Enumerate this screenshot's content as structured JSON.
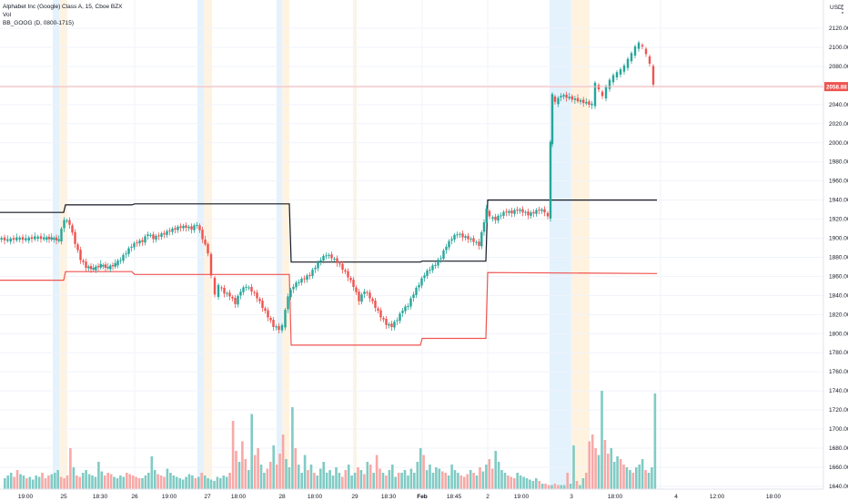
{
  "legend": {
    "symbol": "Alphabet Inc (Google) Class A, 15, Cboe BZX",
    "volume": "Vol",
    "indicator": "BB_GOOG (D, 0800-1715)"
  },
  "currency": "USD",
  "menu_icon": "dots-icon",
  "colors": {
    "up": "#26a69a",
    "down": "#ef5350",
    "vol_up": "#80cbc4",
    "vol_down": "#f7a9a7",
    "band_upper": "#131722",
    "band_lower": "#ef5350",
    "price_line": "#f7b6b5",
    "session_blue": "#e3f2fd",
    "session_orange": "#fff3e0"
  },
  "chart_data": {
    "type": "candlestick",
    "last_price": 2058.88,
    "last_price_label": "2058.88",
    "y_range": [
      1635,
      2150
    ],
    "y_ticks": [
      "2120.00",
      "2100.00",
      "2080.00",
      "2060.00",
      "2040.00",
      "2020.00",
      "2000.00",
      "1980.00",
      "1960.00",
      "1940.00",
      "1920.00",
      "1900.00",
      "1880.00",
      "1860.00",
      "1840.00",
      "1820.00",
      "1800.00",
      "1780.00",
      "1760.00",
      "1740.00",
      "1720.00",
      "1700.00",
      "1680.00",
      "1660.00",
      "1640.00"
    ],
    "y_tick_values": [
      2120,
      2100,
      2080,
      2060,
      2040,
      2020,
      2000,
      1980,
      1960,
      1940,
      1920,
      1900,
      1880,
      1860,
      1840,
      1820,
      1800,
      1780,
      1760,
      1740,
      1720,
      1700,
      1680,
      1660,
      1640
    ],
    "x_labels": [
      "19:00",
      "25",
      "18:30",
      "26",
      "19:00",
      "27",
      "18:00",
      "28",
      "18:00",
      "29",
      "18:30",
      "Feb",
      "18:45",
      "2",
      "19:00",
      "3",
      "18:00",
      "4",
      "12:00",
      "18:00"
    ],
    "x_label_bold": [
      "Feb"
    ],
    "price_path": [
      [
        0,
        1900
      ],
      [
        10,
        1898
      ],
      [
        20,
        1900
      ],
      [
        30,
        1899
      ],
      [
        40,
        1901
      ],
      [
        50,
        1900
      ],
      [
        58,
        1900
      ],
      [
        66,
        1898
      ],
      [
        72,
        1920
      ],
      [
        78,
        1915
      ],
      [
        84,
        1895
      ],
      [
        90,
        1878
      ],
      [
        96,
        1870
      ],
      [
        104,
        1868
      ],
      [
        112,
        1872
      ],
      [
        120,
        1869
      ],
      [
        128,
        1873
      ],
      [
        134,
        1878
      ],
      [
        140,
        1885
      ],
      [
        146,
        1892
      ],
      [
        152,
        1896
      ],
      [
        158,
        1897
      ],
      [
        164,
        1905
      ],
      [
        170,
        1900
      ],
      [
        176,
        1903
      ],
      [
        182,
        1905
      ],
      [
        188,
        1908
      ],
      [
        194,
        1910
      ],
      [
        200,
        1912
      ],
      [
        206,
        1912
      ],
      [
        212,
        1910
      ],
      [
        218,
        1915
      ],
      [
        230,
        1885
      ],
      [
        234,
        1860
      ],
      [
        238,
        1840
      ],
      [
        242,
        1850
      ],
      [
        248,
        1843
      ],
      [
        254,
        1840
      ],
      [
        260,
        1832
      ],
      [
        266,
        1845
      ],
      [
        272,
        1850
      ],
      [
        278,
        1845
      ],
      [
        284,
        1838
      ],
      [
        290,
        1828
      ],
      [
        296,
        1818
      ],
      [
        302,
        1808
      ],
      [
        308,
        1805
      ],
      [
        312,
        1808
      ],
      [
        318,
        1840
      ],
      [
        324,
        1850
      ],
      [
        330,
        1855
      ],
      [
        336,
        1858
      ],
      [
        342,
        1862
      ],
      [
        348,
        1870
      ],
      [
        354,
        1878
      ],
      [
        360,
        1883
      ],
      [
        366,
        1880
      ],
      [
        372,
        1875
      ],
      [
        378,
        1868
      ],
      [
        384,
        1860
      ],
      [
        390,
        1850
      ],
      [
        396,
        1835
      ],
      [
        402,
        1845
      ],
      [
        408,
        1838
      ],
      [
        414,
        1828
      ],
      [
        420,
        1818
      ],
      [
        426,
        1810
      ],
      [
        432,
        1808
      ],
      [
        438,
        1815
      ],
      [
        444,
        1825
      ],
      [
        450,
        1830
      ],
      [
        456,
        1842
      ],
      [
        462,
        1852
      ],
      [
        468,
        1862
      ],
      [
        474,
        1868
      ],
      [
        480,
        1873
      ],
      [
        486,
        1880
      ],
      [
        492,
        1892
      ],
      [
        498,
        1900
      ],
      [
        504,
        1905
      ],
      [
        510,
        1902
      ],
      [
        516,
        1900
      ],
      [
        522,
        1897
      ],
      [
        528,
        1893
      ],
      [
        536,
        1930
      ],
      [
        540,
        1922
      ],
      [
        546,
        1920
      ],
      [
        552,
        1925
      ],
      [
        558,
        1928
      ],
      [
        564,
        1927
      ],
      [
        570,
        1930
      ],
      [
        576,
        1928
      ],
      [
        582,
        1925
      ],
      [
        588,
        1927
      ],
      [
        594,
        1930
      ],
      [
        600,
        1928
      ],
      [
        604,
        1922
      ],
      [
        606,
        2000
      ],
      [
        608,
        2050
      ],
      [
        612,
        2042
      ],
      [
        618,
        2050
      ],
      [
        652,
        2040
      ],
      [
        656,
        2062
      ],
      [
        660,
        2055
      ],
      [
        664,
        2048
      ],
      [
        668,
        2058
      ],
      [
        672,
        2065
      ],
      [
        676,
        2070
      ],
      [
        680,
        2073
      ],
      [
        684,
        2076
      ],
      [
        688,
        2080
      ],
      [
        692,
        2087
      ],
      [
        696,
        2093
      ],
      [
        700,
        2100
      ],
      [
        704,
        2104
      ],
      [
        708,
        2100
      ],
      [
        712,
        2092
      ],
      [
        716,
        2082
      ],
      [
        720,
        2060
      ]
    ],
    "bands": {
      "upper": [
        [
          0,
          1927
        ],
        [
          70,
          1927
        ],
        [
          72,
          1935
        ],
        [
          145,
          1935
        ],
        [
          148,
          1936
        ],
        [
          318,
          1936
        ],
        [
          320,
          1875
        ],
        [
          462,
          1875
        ],
        [
          464,
          1876
        ],
        [
          534,
          1876
        ],
        [
          536,
          1940
        ],
        [
          722,
          1940
        ]
      ],
      "lower": [
        [
          0,
          1856
        ],
        [
          70,
          1856
        ],
        [
          72,
          1865
        ],
        [
          145,
          1865
        ],
        [
          148,
          1862
        ],
        [
          318,
          1862
        ],
        [
          320,
          1788
        ],
        [
          462,
          1788
        ],
        [
          464,
          1795
        ],
        [
          534,
          1795
        ],
        [
          536,
          1864
        ],
        [
          722,
          1863
        ]
      ]
    },
    "volume_pct_max": [
      8,
      10,
      12,
      9,
      14,
      11,
      10,
      8,
      9,
      7,
      10,
      9,
      12,
      8,
      10,
      11,
      12,
      14,
      9,
      8,
      10,
      30,
      16,
      10,
      9,
      12,
      14,
      11,
      10,
      9,
      20,
      13,
      10,
      12,
      11,
      9,
      8,
      10,
      9,
      12,
      11,
      10,
      9,
      8,
      8,
      10,
      12,
      24,
      14,
      11,
      10,
      9,
      15,
      12,
      10,
      9,
      8,
      7,
      9,
      11,
      10,
      8,
      9,
      12,
      10,
      8,
      7,
      6,
      9,
      8,
      10,
      9,
      12,
      50,
      28,
      20,
      35,
      22,
      14,
      55,
      25,
      30,
      18,
      12,
      15,
      20,
      32,
      18,
      26,
      40,
      22,
      16,
      60,
      30,
      18,
      12,
      25,
      14,
      18,
      12,
      10,
      15,
      20,
      12,
      14,
      10,
      16,
      12,
      9,
      14,
      18,
      10,
      12,
      16,
      14,
      11,
      20,
      18,
      12,
      25,
      15,
      12,
      10,
      14,
      18,
      9,
      12,
      12,
      14,
      10,
      15,
      12,
      20,
      30,
      25,
      14,
      18,
      12,
      16,
      15,
      13,
      12,
      10,
      18,
      14,
      12,
      10,
      9,
      11,
      14,
      12,
      10,
      16,
      13,
      18,
      22,
      15,
      28,
      20,
      14,
      12,
      10,
      9,
      8,
      12,
      10,
      9,
      8,
      7,
      6,
      8,
      6,
      4,
      4,
      3,
      3,
      4,
      3,
      3,
      3,
      12,
      4,
      32,
      6,
      3,
      8,
      12,
      35,
      40,
      30,
      25,
      72,
      36,
      26,
      30,
      20,
      24,
      22,
      18,
      16,
      14,
      12,
      16,
      18,
      22,
      14,
      12,
      16,
      70
    ]
  }
}
